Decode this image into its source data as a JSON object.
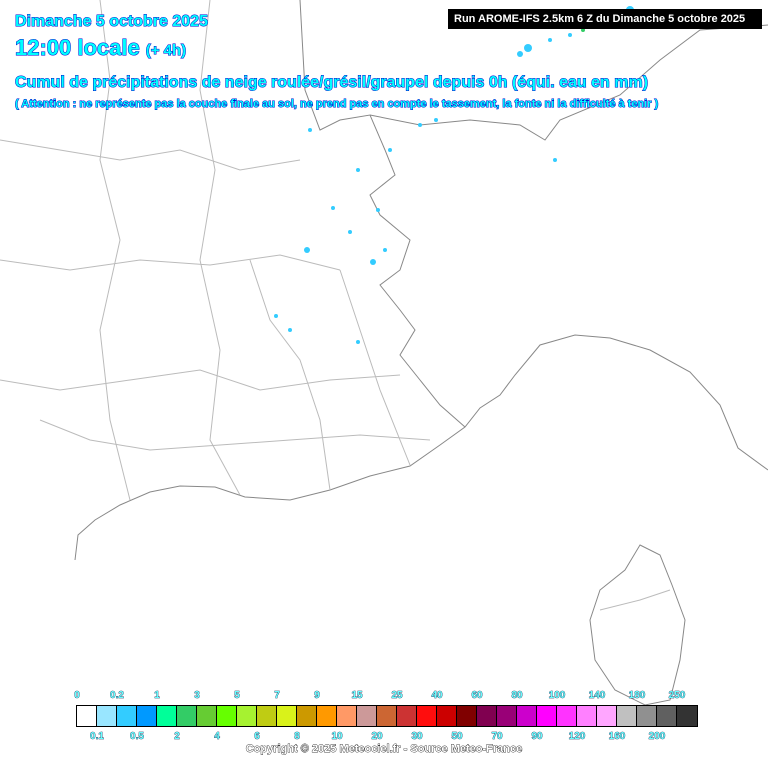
{
  "header": {
    "date": "Dimanche 5 octobre 2025",
    "time": "12:00 locale",
    "offset": "(+ 4h)",
    "title": "Cumul de précipitations de neige roulée/grésil/graupel depuis 0h (équi. eau en mm)",
    "note": "( Attention : ne représente pas la couche finale au sol, ne prend pas en compte le tassement, la fonte ni la difficulté à tenir )",
    "run": "Run AROME-IFS 2.5km 6 Z du Dimanche 5 octobre 2025"
  },
  "legend": {
    "labels": [
      "0",
      "0.1",
      "0.2",
      "0.5",
      "1",
      "2",
      "3",
      "4",
      "5",
      "6",
      "7",
      "8",
      "9",
      "10",
      "15",
      "20",
      "25",
      "30",
      "40",
      "50",
      "60",
      "70",
      "80",
      "90",
      "100",
      "120",
      "140",
      "160",
      "180",
      "200",
      "250"
    ],
    "colors": [
      "#ffffff",
      "#99e6ff",
      "#33ccff",
      "#0099ff",
      "#00ff99",
      "#33cc66",
      "#66cc33",
      "#66ff00",
      "#a6f230",
      "#bfcc13",
      "#d9f21a",
      "#cc9900",
      "#ff9900",
      "#ff9966",
      "#cc9999",
      "#cc6633",
      "#cc3333",
      "#ff0d0d",
      "#cc0000",
      "#800000",
      "#800050",
      "#990077",
      "#cc00cc",
      "#ff00ff",
      "#ff33ff",
      "#ff80ff",
      "#ffa6ff",
      "#c0c0c0",
      "#909090",
      "#606060",
      "#333333"
    ]
  },
  "copyright": "Copyright © 2025 Meteociel.fr - Source Meteo-France",
  "colors": {
    "title_fill": "#00ffff",
    "title_stroke": "#0000cc",
    "precip_light": "#33ccff"
  }
}
